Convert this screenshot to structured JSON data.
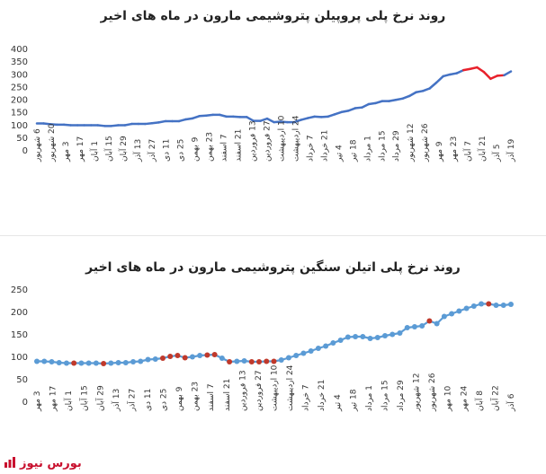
{
  "charts": [
    {
      "title": "روند نرخ پلی پروپیلن پتروشیمی مارون در ماه های اخیر",
      "chart_data": {
        "type": "line",
        "ylim": [
          0,
          400
        ],
        "y_ticks": [
          0,
          50,
          100,
          150,
          200,
          250,
          300,
          350,
          400
        ],
        "x_tick_labels": [
          "6 شهریور",
          "20 شهریور",
          "3 مهر",
          "17 مهر",
          "1 آبان",
          "15 آبان",
          "29 آبان",
          "13 آذر",
          "27 آذر",
          "11 دی",
          "25 دی",
          "9 بهمن",
          "23 بهمن",
          "7 اسفند",
          "21 اسفند",
          "13 فروردین",
          "27 فروردین",
          "10 اردیبهشت",
          "24 اردیبهشت",
          "7 خرداد",
          "21 خرداد",
          "4 تیر",
          "18 تیر",
          "1 مرداد",
          "15 مرداد",
          "29 مرداد",
          "12 شهریور",
          "26 شهریور",
          "9 مهر",
          "23 مهر",
          "7 آبان",
          "21 آبان",
          "5 آذر",
          "19 آذر"
        ],
        "series": [
          {
            "values": [
              108,
              108,
              105,
              103,
              103,
              101,
              101,
              101,
              101,
              101,
              98,
              98,
              101,
              101,
              106,
              106,
              106,
              109,
              112,
              117,
              117,
              117,
              124,
              128,
              137,
              139,
              142,
              142,
              135,
              135,
              133,
              133,
              118,
              118,
              127,
              113,
              115,
              113,
              113,
              122,
              129,
              135,
              133,
              135,
              144,
              153,
              158,
              168,
              171,
              184,
              188,
              196,
              196,
              201,
              206,
              216,
              231,
              236,
              246,
              269,
              294,
              301,
              306,
              318,
              323,
              329,
              311,
              284,
              296,
              298,
              313
            ]
          }
        ],
        "highlight_color": "#e8212b",
        "line_color": "#4472c4"
      }
    },
    {
      "title": "روند نرخ پلی اتیلن سنگین پتروشیمی مارون در ماه های اخیر",
      "chart_data": {
        "type": "line",
        "ylim": [
          0,
          250
        ],
        "y_ticks": [
          0,
          50,
          100,
          150,
          200,
          250
        ],
        "x_tick_labels": [
          "3 مهر",
          "17 مهر",
          "1 آبان",
          "15 آبان",
          "29 آبان",
          "13 آذر",
          "27 آذر",
          "11 دی",
          "25 دی",
          "9 بهمن",
          "23 بهمن",
          "7 اسفند",
          "21 اسفند",
          "13 فروردین",
          "27 فروردین",
          "10 اردیبهشت",
          "24 اردیبهشت",
          "7 خرداد",
          "21 خرداد",
          "4 تیر",
          "18 تیر",
          "1 مرداد",
          "15 مرداد",
          "29 مرداد",
          "12 شهریور",
          "26 شهریور",
          "10 مهر",
          "24 مهر",
          "8 آبان",
          "22 آبان",
          "6 آذر"
        ],
        "series": [
          {
            "values": [
              91,
              91,
              90,
              88,
              87,
              87,
              87,
              87,
              87,
              86,
              87,
              88,
              88,
              90,
              91,
              95,
              96,
              98,
              102,
              104,
              99,
              101,
              104,
              105,
              106,
              98,
              90,
              91,
              92,
              90,
              90,
              91,
              91,
              94,
              99,
              104,
              109,
              114,
              120,
              125,
              132,
              138,
              145,
              146,
              146,
              142,
              144,
              148,
              151,
              154,
              166,
              168,
              170,
              181,
              175,
              191,
              197,
              203,
              209,
              214,
              219,
              219,
              216,
              216,
              218
            ]
          }
        ],
        "highlight_color": "#c0392b",
        "line_color": "#5b9bd5"
      }
    }
  ],
  "footer": {
    "brand": "بورس نیوز"
  }
}
